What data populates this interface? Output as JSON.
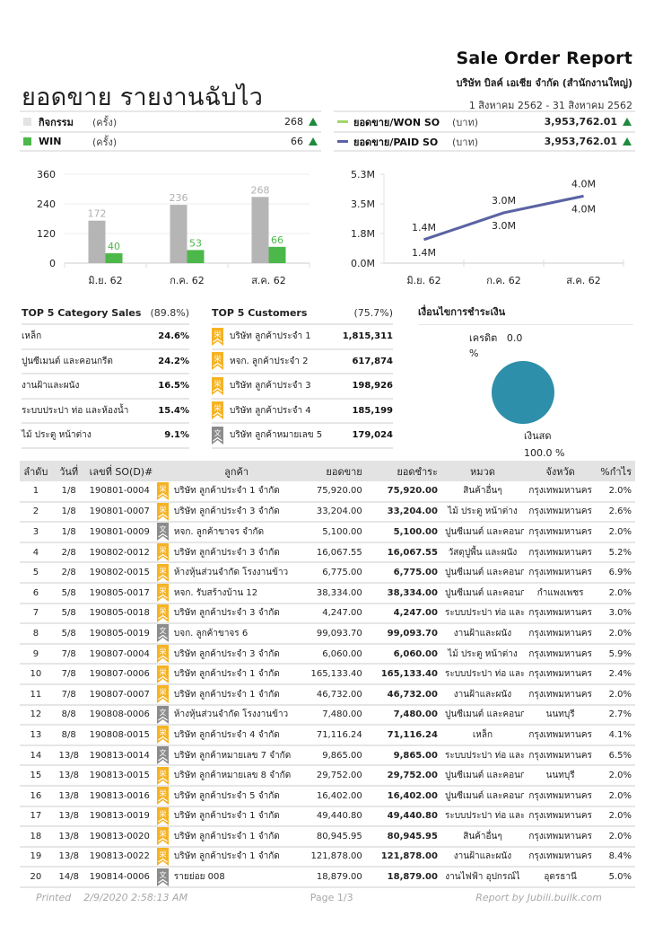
{
  "header": {
    "report_title": "Sale Order Report",
    "company": "บริษัท บิลค์ เอเชีย จำกัด (สำนักงานใหญ่)",
    "period": "1 สิงหาคม 2562 - 31 สิงหาคม 2562",
    "main_title": "ยอดขาย รายงานฉับไว"
  },
  "summary_left": [
    {
      "label": "กิจกรรม",
      "unit": "(ครั้ง)",
      "value": "268",
      "color": "#e3e3e3",
      "trend": "up"
    },
    {
      "label": "WIN",
      "unit": "(ครั้ง)",
      "value": "66",
      "color": "#4cb84a",
      "trend": "up"
    }
  ],
  "summary_right": [
    {
      "label": "ยอดขาย/WON SO",
      "unit": "(บาท)",
      "value": "3,953,762.01",
      "color": "#a5d66b",
      "trend": "up"
    },
    {
      "label": "ยอดขาย/PAID SO",
      "unit": "(บาท)",
      "value": "3,953,762.01",
      "color": "#5b62a8",
      "trend": "up"
    }
  ],
  "chart_data": [
    {
      "type": "bar",
      "title": "",
      "categories": [
        "มิ.ย. 62",
        "ก.ค. 62",
        "ส.ค. 62"
      ],
      "series": [
        {
          "name": "กิจกรรม",
          "values": [
            172,
            236,
            268
          ],
          "color": "#b5b5b5",
          "label_color": "#b0b0b0"
        },
        {
          "name": "WIN",
          "values": [
            40,
            53,
            66
          ],
          "color": "#4cb84a",
          "label_color": "#4cb84a"
        }
      ],
      "yticks": [
        "0",
        "120",
        "240",
        "360"
      ],
      "ylim": [
        0,
        360
      ],
      "grid": true,
      "xlabel": "",
      "ylabel": ""
    },
    {
      "type": "line",
      "title": "",
      "categories": [
        "มิ.ย. 62",
        "ก.ค. 62",
        "ส.ค. 62"
      ],
      "series": [
        {
          "name": "ยอดขาย/WON SO",
          "values": [
            1.4,
            3.0,
            4.0
          ],
          "labels": [
            "1.4M",
            "3.0M",
            "4.0M"
          ],
          "color": "#a5d66b"
        },
        {
          "name": "ยอดขาย/PAID SO",
          "values": [
            1.4,
            3.0,
            4.0
          ],
          "labels": [
            "1.4M",
            "3.0M",
            "4.0M"
          ],
          "color": "#5b62a8"
        }
      ],
      "yticks": [
        "0.0M",
        "1.8M",
        "3.5M",
        "5.3M"
      ],
      "ylim": [
        0,
        5.3
      ],
      "grid": false,
      "xlabel": "",
      "ylabel": ""
    },
    {
      "type": "pie",
      "title": "เงื่อนไขการชำระเงิน",
      "slices": [
        {
          "label": "เครดิต",
          "value": 0.0,
          "display": "0.0 %",
          "color": "#2e8fab"
        },
        {
          "label": "เงินสด",
          "value": 100.0,
          "display": "100.0 %",
          "color": "#2e8fab"
        }
      ]
    }
  ],
  "top_category": {
    "title": "TOP 5 Category Sales",
    "total_pct": "(89.8%)",
    "items": [
      {
        "name": "เหล็ก",
        "value": "24.6%"
      },
      {
        "name": "ปูนซีเมนต์ และคอนกรีต",
        "value": "24.2%"
      },
      {
        "name": "งานฝ้าและผนัง",
        "value": "16.5%"
      },
      {
        "name": "ระบบประปา ท่อ และห้องน้ำ",
        "value": "15.4%"
      },
      {
        "name": "ไม้ ประตู หน้าต่าง",
        "value": "9.1%"
      }
    ]
  },
  "top_customers": {
    "title": "TOP 5 Customers",
    "total_pct": "(75.7%)",
    "items": [
      {
        "name": "บริษัท ลูกค้าประจำ 1",
        "value": "1,815,311",
        "badge": "regular"
      },
      {
        "name": "หจก. ลูกค้าประจำ 2",
        "value": "617,874",
        "badge": "regular"
      },
      {
        "name": "บริษัท ลูกค้าประจำ 3",
        "value": "198,926",
        "badge": "regular"
      },
      {
        "name": "บริษัท ลูกค้าประจำ 4",
        "value": "185,199",
        "badge": "regular"
      },
      {
        "name": "บริษัท ลูกค้าหมายเลข 5",
        "value": "179,024",
        "badge": "walkin"
      }
    ]
  },
  "payment": {
    "title": "เงื่อนไขการชำระเงิน",
    "credit_label": "เครดิต",
    "credit_value": "0.0",
    "credit_pct_sign": "%",
    "cash_label": "เงินสด",
    "cash_value": "100.0 %"
  },
  "table": {
    "columns": [
      "ลำดับ",
      "วันที่",
      "เลขที่ SO(D)#",
      "ลูกค้า",
      "ยอดขาย",
      "ยอดชำระ",
      "หมวด",
      "จังหวัด",
      "%กำไร"
    ],
    "rows": [
      {
        "no": "1",
        "date": "1/8",
        "so": "190801-0004",
        "badge": "regular",
        "customer": "บริษัท ลูกค้าประจำ 1 จำกัด",
        "sale": "75,920.00",
        "paid": "75,920.00",
        "category": "สินค้าอื่นๆ",
        "province": "กรุงเทพมหานคร",
        "profit": "2.0%"
      },
      {
        "no": "2",
        "date": "1/8",
        "so": "190801-0007",
        "badge": "regular",
        "customer": "บริษัท ลูกค้าประจำ 3 จำกัด",
        "sale": "33,204.00",
        "paid": "33,204.00",
        "category": "ไม้ ประตู หน้าต่าง",
        "province": "กรุงเทพมหานคร",
        "profit": "2.6%"
      },
      {
        "no": "3",
        "date": "1/8",
        "so": "190801-0009",
        "badge": "walkin",
        "customer": "หจก. ลูกค้าขาจร จำกัด",
        "sale": "5,100.00",
        "paid": "5,100.00",
        "category": "ปูนซีเมนต์ และคอนก",
        "province": "กรุงเทพมหานคร",
        "profit": "2.0%"
      },
      {
        "no": "4",
        "date": "2/8",
        "so": "190802-0012",
        "badge": "regular",
        "customer": "บริษัท ลูกค้าประจำ 3 จำกัด",
        "sale": "16,067.55",
        "paid": "16,067.55",
        "category": "วัสดุปูพื้น และผนัง",
        "province": "กรุงเทพมหานคร",
        "profit": "5.2%"
      },
      {
        "no": "5",
        "date": "2/8",
        "so": "190802-0015",
        "badge": "regular",
        "customer": "ห้างหุ้นส่วนจำกัด โรงงานข้าว",
        "sale": "6,775.00",
        "paid": "6,775.00",
        "category": "ปูนซีเมนต์ และคอนก",
        "province": "กรุงเทพมหานคร",
        "profit": "6.9%"
      },
      {
        "no": "6",
        "date": "5/8",
        "so": "190805-0017",
        "badge": "regular",
        "customer": "หจก. รับสร้างบ้าน 12",
        "sale": "38,334.00",
        "paid": "38,334.00",
        "category": "ปูนซีเมนต์ และคอนก",
        "province": "กำแพงเพชร",
        "profit": "2.0%"
      },
      {
        "no": "7",
        "date": "5/8",
        "so": "190805-0018",
        "badge": "regular",
        "customer": "บริษัท ลูกค้าประจำ 3 จำกัด",
        "sale": "4,247.00",
        "paid": "4,247.00",
        "category": "ระบบประปา ท่อ และ",
        "province": "กรุงเทพมหานคร",
        "profit": "3.0%"
      },
      {
        "no": "8",
        "date": "5/8",
        "so": "190805-0019",
        "badge": "walkin",
        "customer": "บจก. ลูกค้าขาจร 6",
        "sale": "99,093.70",
        "paid": "99,093.70",
        "category": "งานฝ้าและผนัง",
        "province": "กรุงเทพมหานคร",
        "profit": "2.0%"
      },
      {
        "no": "9",
        "date": "7/8",
        "so": "190807-0004",
        "badge": "regular",
        "customer": "บริษัท ลูกค้าประจำ 3 จำกัด",
        "sale": "6,060.00",
        "paid": "6,060.00",
        "category": "ไม้ ประตู หน้าต่าง",
        "province": "กรุงเทพมหานคร",
        "profit": "5.9%"
      },
      {
        "no": "10",
        "date": "7/8",
        "so": "190807-0006",
        "badge": "regular",
        "customer": "บริษัท ลูกค้าประจำ 1 จำกัด",
        "sale": "165,133.40",
        "paid": "165,133.40",
        "category": "ระบบประปา ท่อ และ",
        "province": "กรุงเทพมหานคร",
        "profit": "2.4%"
      },
      {
        "no": "11",
        "date": "7/8",
        "so": "190807-0007",
        "badge": "regular",
        "customer": "บริษัท ลูกค้าประจำ 1 จำกัด",
        "sale": "46,732.00",
        "paid": "46,732.00",
        "category": "งานฝ้าและผนัง",
        "province": "กรุงเทพมหานคร",
        "profit": "2.0%"
      },
      {
        "no": "12",
        "date": "8/8",
        "so": "190808-0006",
        "badge": "walkin",
        "customer": "ห้างหุ้นส่วนจำกัด โรงงานข้าว",
        "sale": "7,480.00",
        "paid": "7,480.00",
        "category": "ปูนซีเมนต์ และคอนก",
        "province": "นนทบุรี",
        "profit": "2.7%"
      },
      {
        "no": "13",
        "date": "8/8",
        "so": "190808-0015",
        "badge": "regular",
        "customer": "บริษัท ลูกค้าประจำ 4 จำกัด",
        "sale": "71,116.24",
        "paid": "71,116.24",
        "category": "เหล็ก",
        "province": "กรุงเทพมหานคร",
        "profit": "4.1%"
      },
      {
        "no": "14",
        "date": "13/8",
        "so": "190813-0014",
        "badge": "walkin",
        "customer": "บริษัท ลูกค้าหมายเลข 7 จำกัด",
        "sale": "9,865.00",
        "paid": "9,865.00",
        "category": "ระบบประปา ท่อ และ",
        "province": "กรุงเทพมหานคร",
        "profit": "6.5%"
      },
      {
        "no": "15",
        "date": "13/8",
        "so": "190813-0015",
        "badge": "regular",
        "customer": "บริษัท ลูกค้าหมายเลข 8 จำกัด",
        "sale": "29,752.00",
        "paid": "29,752.00",
        "category": "ปูนซีเมนต์ และคอนก",
        "province": "นนทบุรี",
        "profit": "2.0%"
      },
      {
        "no": "16",
        "date": "13/8",
        "so": "190813-0016",
        "badge": "regular",
        "customer": "บริษัท ลูกค้าประจำ 5 จำกัด",
        "sale": "16,402.00",
        "paid": "16,402.00",
        "category": "ปูนซีเมนต์ และคอนก",
        "province": "กรุงเทพมหานคร",
        "profit": "2.0%"
      },
      {
        "no": "17",
        "date": "13/8",
        "so": "190813-0019",
        "badge": "regular",
        "customer": "บริษัท ลูกค้าประจำ 1 จำกัด",
        "sale": "49,440.80",
        "paid": "49,440.80",
        "category": "ระบบประปา ท่อ และ",
        "province": "กรุงเทพมหานคร",
        "profit": "2.0%"
      },
      {
        "no": "18",
        "date": "13/8",
        "so": "190813-0020",
        "badge": "regular",
        "customer": "บริษัท ลูกค้าประจำ 1 จำกัด",
        "sale": "80,945.95",
        "paid": "80,945.95",
        "category": "สินค้าอื่นๆ",
        "province": "กรุงเทพมหานคร",
        "profit": "2.0%"
      },
      {
        "no": "19",
        "date": "13/8",
        "so": "190813-0022",
        "badge": "regular",
        "customer": "บริษัท ลูกค้าประจำ 1 จำกัด",
        "sale": "121,878.00",
        "paid": "121,878.00",
        "category": "งานฝ้าและผนัง",
        "province": "กรุงเทพมหานคร",
        "profit": "8.4%"
      },
      {
        "no": "20",
        "date": "14/8",
        "so": "190814-0006",
        "badge": "walkin",
        "customer": "รายย่อย 008",
        "sale": "18,879.00",
        "paid": "18,879.00",
        "category": "งานไฟฟ้า อุปกรณ์ไ",
        "province": "อุดรธานี",
        "profit": "5.0%"
      }
    ]
  },
  "footer": {
    "printed_label": "Printed",
    "printed_at": "2/9/2020 2:58:13 AM",
    "page": "Page 1/3",
    "credit": "Report by Jubili.builk.com"
  },
  "colors": {
    "accent_up": "#1e8a3c",
    "badge_regular": "#f5b324",
    "badge_walkin": "#8c8c8c",
    "pie": "#2e8fab"
  }
}
